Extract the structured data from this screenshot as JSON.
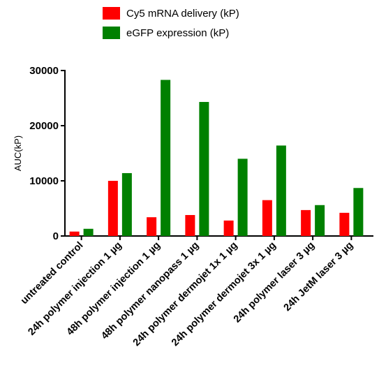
{
  "chart_data": {
    "type": "bar",
    "ylabel": "AUC(kP)",
    "xlabel": "",
    "ylim": [
      0,
      30000
    ],
    "yticks": [
      0,
      10000,
      20000,
      30000
    ],
    "ytick_labels": [
      "0",
      "10000",
      "20000",
      "30000"
    ],
    "categories": [
      "untreated control",
      "24h polymer injection 1 µg",
      "48h polymer injection 1 µg",
      "48h polymer nanopass 1 µg",
      "24h polymer dermojet 1x 1 µg",
      "24h polymer dermojet 3x 1 µg",
      "24h polymer laser 3 µg",
      "24h JetM laser 3 µg"
    ],
    "series": [
      {
        "name": "Cy5 mRNA delivery (kP)",
        "color": "#ff0000",
        "values": [
          800,
          10000,
          3400,
          3800,
          2800,
          6500,
          4700,
          4200
        ]
      },
      {
        "name": "eGFP expression (kP)",
        "color": "#008000",
        "values": [
          1300,
          11400,
          28300,
          24300,
          14000,
          16400,
          5600,
          8700
        ]
      }
    ],
    "legend_position": "top-center",
    "grid": false
  }
}
